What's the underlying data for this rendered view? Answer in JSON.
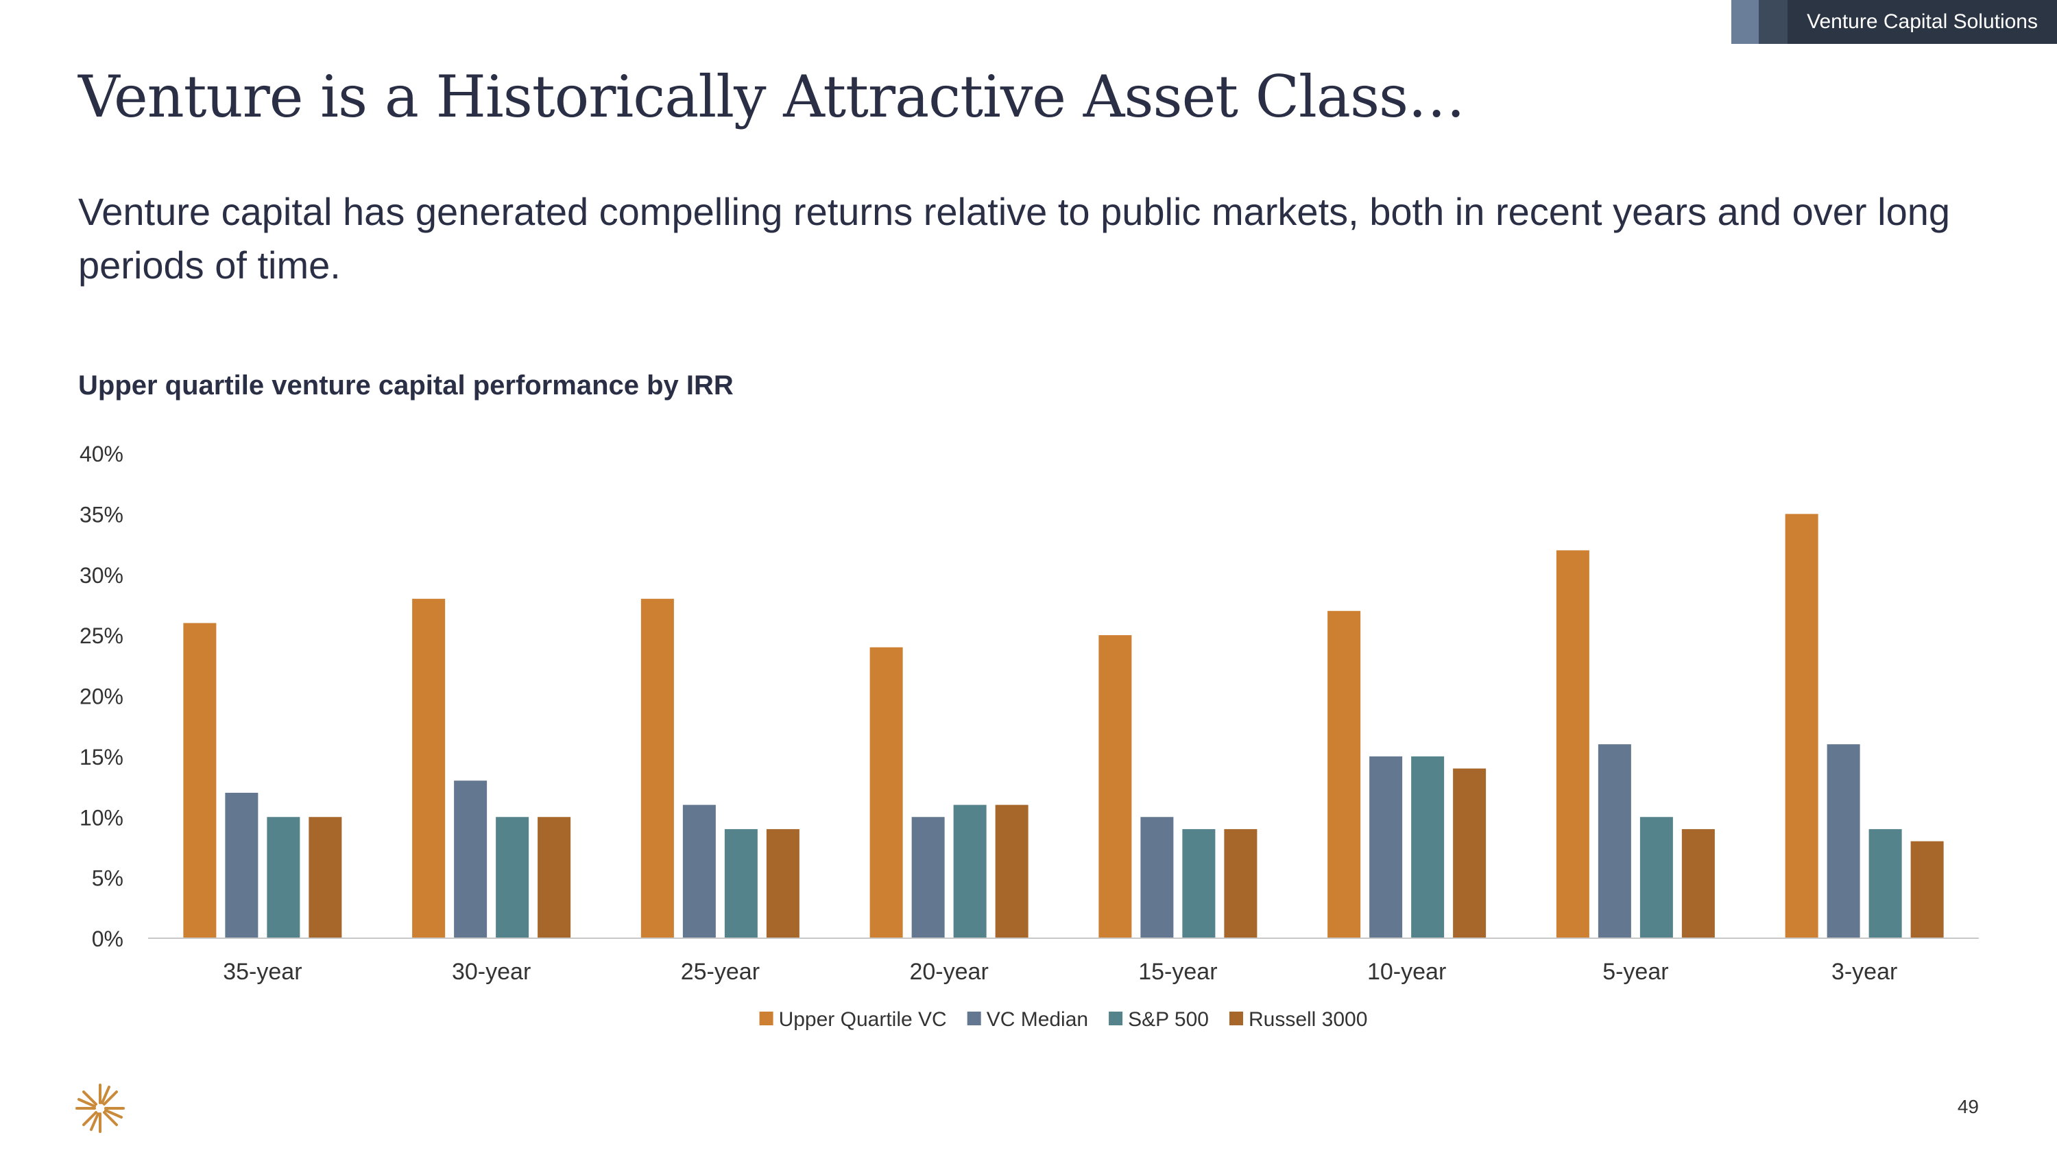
{
  "header": {
    "section_tag": "Venture Capital Solutions"
  },
  "title": "Venture is a Historically Attractive Asset Class…",
  "subtitle": "Venture capital has generated compelling returns relative to public markets, both in recent years and over long periods of time.",
  "footer": {
    "page_number": "49",
    "logo_icon": "starburst-logo-icon"
  },
  "colors": {
    "text": "#2b2f45",
    "accent": "#cd7f32"
  },
  "chart_data": {
    "type": "bar",
    "title": "Upper quartile venture capital performance by IRR",
    "xlabel": "",
    "ylabel": "",
    "ylim": [
      0,
      40
    ],
    "yticks": [
      "0%",
      "5%",
      "10%",
      "15%",
      "20%",
      "25%",
      "30%",
      "35%",
      "40%"
    ],
    "ytick_values": [
      0,
      5,
      10,
      15,
      20,
      25,
      30,
      35,
      40
    ],
    "grid": false,
    "legend_position": "bottom",
    "categories": [
      "35-year",
      "30-year",
      "25-year",
      "20-year",
      "15-year",
      "10-year",
      "5-year",
      "3-year"
    ],
    "series": [
      {
        "name": "Upper Quartile VC",
        "color": "#cd7f32",
        "values": [
          26,
          28,
          28,
          24,
          25,
          27,
          32,
          35
        ]
      },
      {
        "name": "VC Median",
        "color": "#637790",
        "values": [
          12,
          13,
          11,
          10,
          10,
          15,
          16,
          16
        ]
      },
      {
        "name": "S&P 500",
        "color": "#55838b",
        "values": [
          10,
          10,
          9,
          11,
          9,
          15,
          10,
          9
        ]
      },
      {
        "name": "Russell 3000",
        "color": "#a7662a",
        "values": [
          10,
          10,
          9,
          11,
          9,
          14,
          9,
          8
        ]
      }
    ]
  }
}
